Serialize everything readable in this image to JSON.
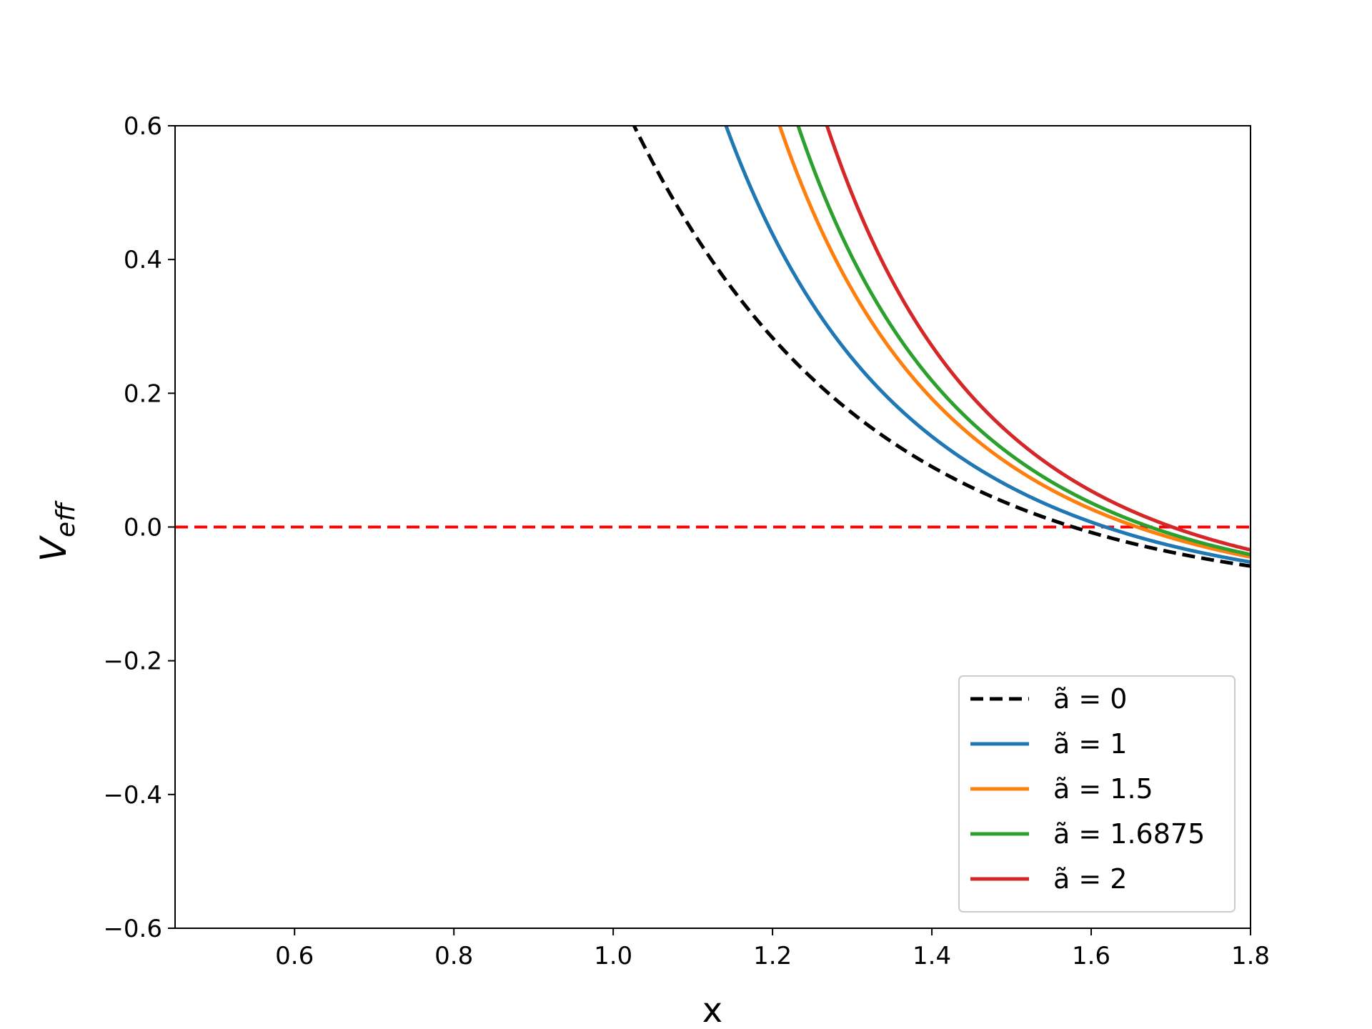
{
  "chart_data": {
    "type": "line",
    "title": "",
    "xlabel": "x",
    "ylabel_main": "V",
    "ylabel_sub": "eff",
    "xlim": [
      0.45,
      1.8
    ],
    "ylim": [
      -0.6,
      0.6
    ],
    "x_ticks": [
      0.6,
      0.8,
      1.0,
      1.2,
      1.4,
      1.6,
      1.8
    ],
    "x_tick_labels": [
      "0.6",
      "0.8",
      "1.0",
      "1.2",
      "1.4",
      "1.6",
      "1.8"
    ],
    "y_ticks": [
      -0.6,
      -0.4,
      -0.2,
      0.0,
      0.2,
      0.4,
      0.6
    ],
    "y_tick_labels": [
      "−0.6",
      "−0.4",
      "−0.2",
      "0.0",
      "0.2",
      "0.4",
      "0.6"
    ],
    "grid": false,
    "legend_position": "bottom-right",
    "reference_line": {
      "y": 0.0,
      "color": "#ff0000",
      "style": "dashed"
    },
    "series": [
      {
        "name": "ã = 0",
        "a": 0,
        "color": "#000000",
        "style": "dashed"
      },
      {
        "name": "ã = 1",
        "a": 1,
        "color": "#1f77b4",
        "style": "solid"
      },
      {
        "name": "ã = 1.5",
        "a": 1.5,
        "color": "#ff7f0e",
        "style": "solid"
      },
      {
        "name": "ã = 1.6875",
        "a": 1.6875,
        "color": "#2ca02c",
        "style": "solid"
      },
      {
        "name": "ã = 2",
        "a": 2,
        "color": "#d62728",
        "style": "solid"
      }
    ]
  }
}
